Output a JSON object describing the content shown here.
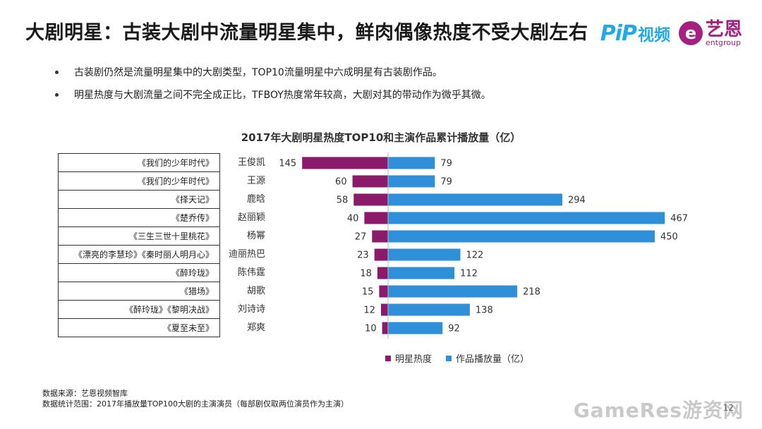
{
  "title": "大剧明星：古装大剧中流量明星集中，鲜肉偶像热度不受大剧左右",
  "logos": {
    "pp_mark": "PiP",
    "pp_text": "视频",
    "ent_mark": "e",
    "ent_cn": "艺恩",
    "ent_en": "entgroup"
  },
  "bullets": [
    "古装剧仍然是流量明星集中的大剧类型，TOP10流量明星中六成明星有古装剧作品。",
    "明星热度与大剧流量之间不完全成正比，TFBOY热度常年较高，大剧对其的带动作为微乎其微。"
  ],
  "chart_data": {
    "type": "bar",
    "title": "2017年大剧明星热度TOP10和主演作品累计播放量（亿）",
    "categories": [
      "王俊凯",
      "王源",
      "鹿晗",
      "赵丽颖",
      "杨幂",
      "迪丽热巴",
      "陈伟霆",
      "胡歌",
      "刘诗诗",
      "郑爽"
    ],
    "works": [
      "《我们的少年时代》",
      "《我们的少年时代》",
      "《择天记》",
      "《楚乔传》",
      "《三生三世十里桃花》",
      "《漂亮的李慧珍》《秦时丽人明月心》",
      "《醉玲珑》",
      "《猎场》",
      "《醉玲珑》《黎明决战》",
      "《夏至未至》"
    ],
    "series": [
      {
        "name": "明星热度",
        "values": [
          145,
          60,
          58,
          40,
          27,
          23,
          18,
          15,
          12,
          10
        ],
        "color": "#8b1a6b"
      },
      {
        "name": "作品播放量（亿）",
        "values": [
          79,
          79,
          294,
          467,
          450,
          122,
          112,
          218,
          138,
          92
        ],
        "color": "#2f8fd9"
      }
    ]
  },
  "source": {
    "line1": "数据来源：艺恩视频智库",
    "line2": "数据统计范围：2017年播放量TOP100大剧的主演演员（每部剧仅取两位演员作为主演）"
  },
  "watermark": "GameRes游资网",
  "page_number": "12"
}
